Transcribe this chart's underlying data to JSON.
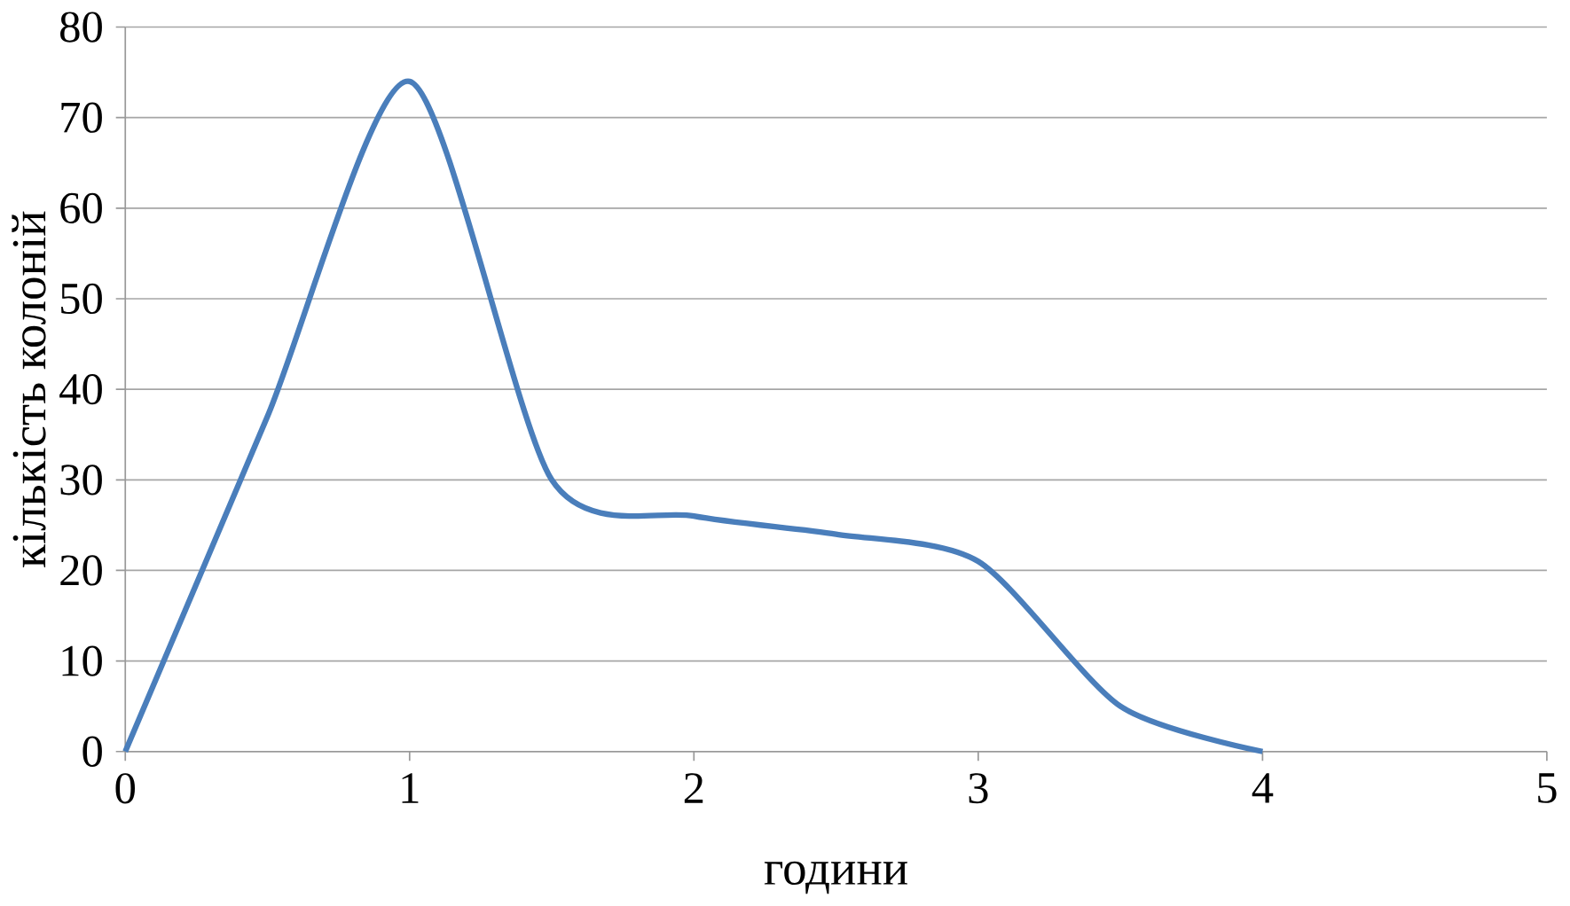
{
  "chart_data": {
    "type": "line",
    "xlabel": "години",
    "ylabel": "кількість колоній",
    "x": [
      0,
      0.5,
      1,
      1.5,
      2,
      2.5,
      3,
      3.5,
      4
    ],
    "series": [
      {
        "color": "#4a7ebb",
        "values": [
          0,
          37,
          74,
          30,
          26,
          24,
          21,
          5,
          0
        ]
      }
    ],
    "xlim": [
      0,
      5
    ],
    "xticks": [
      0,
      1,
      2,
      3,
      4,
      5
    ],
    "ylim": [
      0,
      80
    ],
    "yticks": [
      0,
      10,
      20,
      30,
      40,
      50,
      60,
      70,
      80
    ],
    "grid": "y",
    "marker": "none",
    "line_style": "solid"
  }
}
